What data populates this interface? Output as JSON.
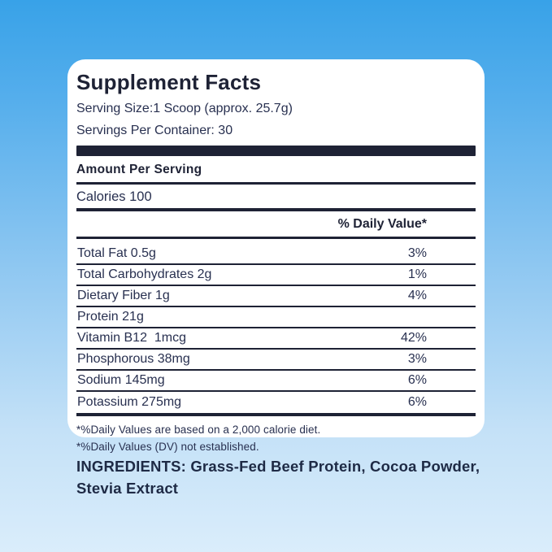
{
  "colors": {
    "background_top": "#38a2e8",
    "background_bottom": "#daedfb",
    "card": "#ffffff",
    "text_navy": "#1e2235"
  },
  "panel": {
    "title": "Supplement Facts",
    "serving_size": "Serving Size:1 Scoop (approx. 25.7g)",
    "servings_per_container": "Servings Per Container: 30",
    "amount_per_serving": "Amount Per Serving",
    "calories": "Calories 100",
    "daily_value_header": "% Daily Value*",
    "rows": [
      {
        "name": "Total Fat 0.5g",
        "dv": "3%"
      },
      {
        "name": "Total Carbohydrates 2g",
        "dv": "1%"
      },
      {
        "name": "Dietary Fiber 1g",
        "dv": "4%"
      },
      {
        "name": "Protein 21g",
        "dv": ""
      },
      {
        "name": "Vitamin B12  1mcg",
        "dv": "42%"
      },
      {
        "name": "Phosphorous 38mg",
        "dv": "3%"
      },
      {
        "name": "Sodium 145mg",
        "dv": "6%"
      },
      {
        "name": "Potassium 275mg",
        "dv": "6%"
      }
    ],
    "footnotes": [
      "*%Daily Values are based on a 2,000 calorie diet.",
      "*%Daily Values (DV) not established."
    ]
  },
  "ingredients": {
    "label": "INGREDIENTS:",
    "text": " Grass-Fed Beef Protein, Cocoa Powder, Stevia Extract"
  }
}
